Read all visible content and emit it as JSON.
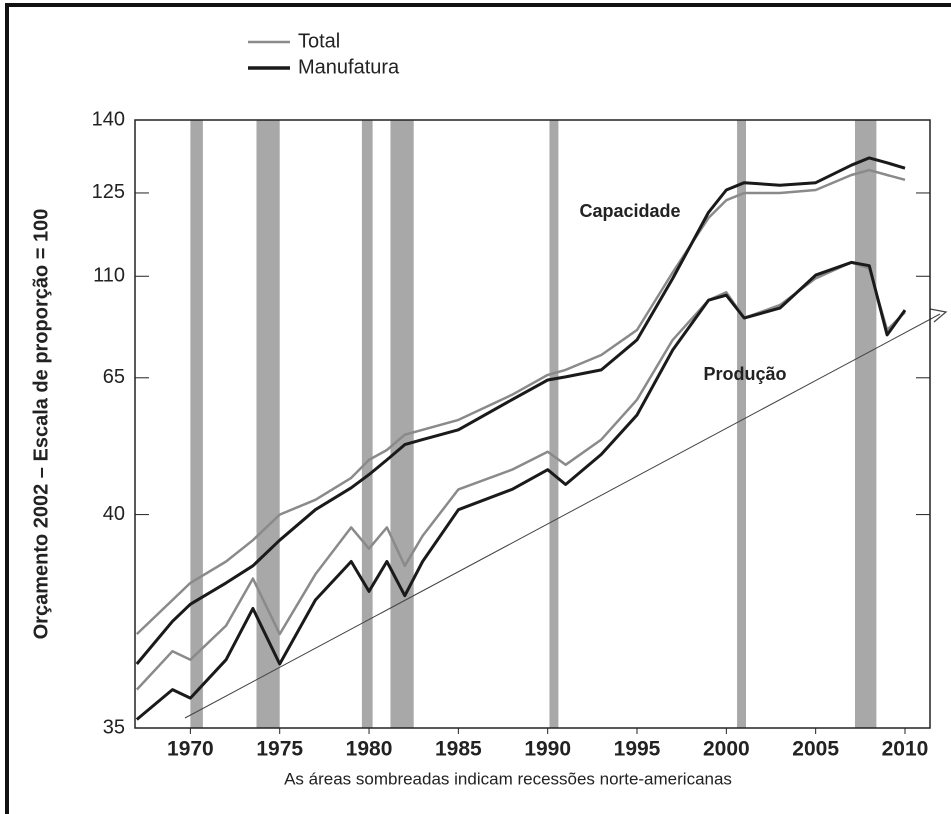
{
  "chart_data": {
    "type": "line",
    "y_label": "Orçamento 2002 – Escala de proporção = 100",
    "x_label": "As áreas sombreadas indicam recessões norte-americanas",
    "capacity_label": "Capacidade",
    "production_label": "Produção",
    "x": [
      1967,
      1969,
      1970,
      1972,
      1973.5,
      1975,
      1977,
      1979,
      1980,
      1981,
      1982,
      1983,
      1985,
      1988,
      1990,
      1991,
      1993,
      1995,
      1997,
      1999,
      2000,
      2001,
      2003,
      2005,
      2007,
      2008,
      2009,
      2010
    ],
    "series": [
      {
        "name": "Total",
        "color": "#8a8a8a",
        "capacity": [
          37.2,
          38.0,
          38.4,
          38.9,
          39.4,
          40.0,
          42.7,
          46.7,
          50.0,
          51.8,
          54.6,
          55.5,
          57.3,
          61.9,
          66.3,
          68.5,
          75.1,
          86.2,
          110.7,
          120.5,
          123.7,
          125,
          125,
          125.6,
          128.7,
          129.7,
          128.7,
          127.7
        ],
        "production": [
          35.9,
          36.8,
          36.6,
          37.4,
          38.5,
          37.2,
          38.6,
          39.7,
          39.2,
          39.7,
          38.8,
          39.5,
          44.6,
          48.2,
          51.5,
          49.1,
          53.7,
          61.0,
          81.8,
          99.4,
          102.9,
          91.5,
          97.2,
          109.1,
          112.5,
          111.4,
          86.2,
          94.1
        ]
      },
      {
        "name": "Manufatura",
        "color": "#1a1a1a",
        "capacity": [
          36.5,
          37.5,
          37.9,
          38.4,
          38.8,
          39.4,
          40.9,
          44.9,
          47.3,
          50.0,
          52.8,
          53.7,
          55.5,
          61.0,
          64.6,
          65.4,
          68.5,
          81.8,
          109.0,
          121.5,
          125.6,
          127.1,
          126.6,
          127.1,
          130.7,
          132.2,
          131.2,
          130.1
        ],
        "production": [
          35.2,
          35.9,
          35.7,
          36.6,
          37.8,
          36.5,
          38.0,
          38.9,
          38.2,
          38.9,
          38.1,
          38.9,
          40.9,
          44.6,
          48.2,
          45.5,
          51.0,
          58.2,
          77.3,
          99.4,
          101.6,
          91.5,
          95.9,
          110.2,
          112.5,
          111.9,
          84.0,
          95.0
        ]
      }
    ],
    "recessions": [
      [
        1970.0,
        1970.7
      ],
      [
        1973.7,
        1975.0
      ],
      [
        1979.6,
        1980.2
      ],
      [
        1981.2,
        1982.5
      ],
      [
        1990.1,
        1990.6
      ],
      [
        2000.6,
        2001.1
      ],
      [
        2007.2,
        2008.4
      ]
    ],
    "recession_color": "#a8a8a8",
    "xlim": [
      1966.9,
      2011.4
    ],
    "xticks": [
      1970,
      1975,
      1980,
      1985,
      1990,
      1995,
      2000,
      2005,
      2010
    ],
    "ylim": [
      35,
      140
    ],
    "yticks": [
      35,
      40,
      65,
      110,
      125,
      140
    ]
  }
}
